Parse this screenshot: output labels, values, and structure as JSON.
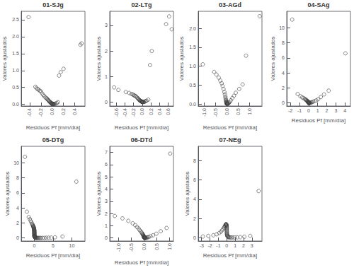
{
  "chart_data": [
    {
      "type": "scatter",
      "title": "01-SJg",
      "xlabel": "Residuos Pf [mm/día]",
      "ylabel": "Valores ajustados",
      "xlim": [
        -0.55,
        0.58
      ],
      "ylim": [
        -0.05,
        2.75
      ],
      "xticks": [
        -0.4,
        -0.2,
        {
          "value": 0.0,
          "label": "0.0"
        },
        0.2,
        0.4
      ],
      "yticks": [
        {
          "value": 0.0,
          "label": "0.0"
        },
        0.5,
        {
          "value": 1.0,
          "label": "1.0"
        },
        1.5,
        {
          "value": 2.0,
          "label": "2.0"
        },
        2.5
      ],
      "x": [
        -0.42,
        -0.3,
        -0.28,
        -0.26,
        -0.24,
        -0.22,
        -0.2,
        -0.18,
        -0.16,
        -0.14,
        -0.12,
        -0.1,
        -0.09,
        -0.08,
        -0.07,
        -0.06,
        -0.05,
        -0.04,
        -0.03,
        -0.03,
        -0.02,
        -0.02,
        -0.01,
        -0.01,
        0.0,
        0.0,
        0.0,
        0.0,
        0.0,
        0.01,
        0.01,
        0.02,
        0.02,
        0.03,
        0.04,
        0.06,
        0.08,
        0.1,
        0.12,
        0.15,
        0.2,
        0.5,
        0.52
      ],
      "values": [
        2.58,
        0.52,
        0.48,
        0.45,
        0.43,
        0.4,
        0.38,
        0.32,
        0.28,
        0.24,
        0.2,
        0.18,
        0.16,
        0.14,
        0.12,
        0.1,
        0.08,
        0.07,
        0.06,
        0.05,
        0.04,
        0.03,
        0.03,
        0.02,
        0.02,
        0.02,
        0.01,
        0.01,
        0.01,
        0.01,
        0.01,
        0.01,
        0.01,
        0.01,
        0.01,
        0.02,
        0.04,
        0.06,
        0.85,
        0.95,
        1.05,
        1.76,
        1.8
      ],
      "color": "#444444",
      "marker": "circle",
      "grid": false
    },
    {
      "type": "scatter",
      "title": "02-LTg",
      "xlabel": "Residuos Pf [mm/día]",
      "ylabel": "Valores ajustados",
      "xlim": [
        -0.75,
        0.72
      ],
      "ylim": [
        -0.15,
        3.55
      ],
      "xticks": [
        -0.6,
        -0.4,
        -0.2,
        {
          "value": 0.0,
          "label": "0.0"
        },
        0.2,
        0.4,
        0.6
      ],
      "yticks": [
        0,
        1,
        2,
        3
      ],
      "x": [
        -0.65,
        -0.55,
        -0.38,
        -0.3,
        -0.25,
        -0.22,
        -0.2,
        -0.18,
        -0.16,
        -0.14,
        -0.12,
        -0.1,
        -0.09,
        -0.08,
        -0.07,
        -0.06,
        -0.05,
        -0.04,
        -0.03,
        -0.02,
        -0.02,
        -0.01,
        0.0,
        0.0,
        0.0,
        0.0,
        0.01,
        0.01,
        0.02,
        0.03,
        0.04,
        0.06,
        0.08,
        0.1,
        0.14,
        0.18,
        0.22,
        0.55,
        0.62,
        0.68
      ],
      "values": [
        0.58,
        0.48,
        0.4,
        0.36,
        0.32,
        0.3,
        0.28,
        0.26,
        0.24,
        0.22,
        0.18,
        0.15,
        0.13,
        0.11,
        0.09,
        0.07,
        0.06,
        0.05,
        0.04,
        0.03,
        0.02,
        0.02,
        0.02,
        0.01,
        0.01,
        0.01,
        0.01,
        0.01,
        0.01,
        0.01,
        0.01,
        0.02,
        0.04,
        0.06,
        0.1,
        1.45,
        2.0,
        3.05,
        3.35,
        2.85
      ],
      "color": "#444444",
      "marker": "circle",
      "grid": false
    },
    {
      "type": "scatter",
      "title": "03-AGd",
      "xlabel": "Residuos Pf [mm/día]",
      "ylabel": "Valores ajustados",
      "xlim": [
        -1.25,
        1.55
      ],
      "ylim": [
        -0.05,
        2.45
      ],
      "xticks": [
        {
          "value": -1.0,
          "label": "-1.0"
        },
        -0.5,
        {
          "value": 0.0,
          "label": "0.0"
        },
        0.5,
        {
          "value": 1.0,
          "label": "1.0"
        }
      ],
      "yticks": [
        {
          "value": 0.0,
          "label": "0.0"
        },
        0.5,
        {
          "value": 1.0,
          "label": "1.0"
        },
        1.5,
        {
          "value": 2.0,
          "label": "2.0"
        }
      ],
      "x": [
        -1.05,
        -0.55,
        -0.45,
        -0.35,
        -0.28,
        -0.22,
        -0.18,
        -0.14,
        -0.1,
        -0.08,
        -0.06,
        -0.05,
        -0.04,
        -0.03,
        -0.02,
        -0.02,
        -0.01,
        0.0,
        0.0,
        0.0,
        0.0,
        0.0,
        0.01,
        0.01,
        0.02,
        0.03,
        0.04,
        0.06,
        0.08,
        0.1,
        0.14,
        0.18,
        0.25,
        0.32,
        0.4,
        0.55,
        0.7,
        0.85,
        1.45
      ],
      "values": [
        1.05,
        0.85,
        0.78,
        0.7,
        0.62,
        0.55,
        0.48,
        0.4,
        0.32,
        0.26,
        0.2,
        0.16,
        0.13,
        0.1,
        0.08,
        0.06,
        0.05,
        0.04,
        0.03,
        0.03,
        0.02,
        0.01,
        0.01,
        0.01,
        0.01,
        0.01,
        0.01,
        0.01,
        0.02,
        0.04,
        0.06,
        0.1,
        0.16,
        0.22,
        0.3,
        0.4,
        0.52,
        1.28,
        2.32
      ],
      "color": "#444444",
      "marker": "circle",
      "grid": false
    },
    {
      "type": "scatter",
      "title": "04-SAg",
      "xlabel": "Residuos Pf [mm/día]",
      "ylabel": "Valores ajustados",
      "xlim": [
        -2.4,
        4.6
      ],
      "ylim": [
        -0.4,
        12.2
      ],
      "xticks": [
        -2,
        -1,
        0,
        1,
        2,
        3,
        4
      ],
      "yticks": [
        0,
        2,
        4,
        6,
        8,
        10
      ],
      "x": [
        -1.8,
        -1.2,
        -0.9,
        -0.7,
        -0.55,
        -0.42,
        -0.35,
        -0.28,
        -0.22,
        -0.18,
        -0.14,
        -0.1,
        -0.08,
        -0.06,
        -0.04,
        -0.03,
        -0.02,
        -0.01,
        0.0,
        0.0,
        0.0,
        0.0,
        0.0,
        0.01,
        0.01,
        0.02,
        0.03,
        0.04,
        0.06,
        0.08,
        0.1,
        0.14,
        0.18,
        0.25,
        0.35,
        0.48,
        0.65,
        0.85,
        1.05,
        1.35,
        1.7,
        2.2,
        4.05
      ],
      "values": [
        11.1,
        1.2,
        0.9,
        0.75,
        0.65,
        0.55,
        0.48,
        0.42,
        0.36,
        0.3,
        0.26,
        0.22,
        0.18,
        0.15,
        0.12,
        0.1,
        0.08,
        0.06,
        0.05,
        0.04,
        0.03,
        0.02,
        0.01,
        0.01,
        0.01,
        0.01,
        0.01,
        0.01,
        0.01,
        0.01,
        0.01,
        0.02,
        0.03,
        0.06,
        0.1,
        0.16,
        0.25,
        0.35,
        0.5,
        0.8,
        1.15,
        1.65,
        6.6
      ],
      "color": "#444444",
      "marker": "circle",
      "grid": false
    },
    {
      "type": "scatter",
      "title": "05-DTg",
      "xlabel": "Residuos Pf [mm/día]",
      "ylabel": "Valores ajustados",
      "xlim": [
        -3.5,
        13.5
      ],
      "ylim": [
        -0.4,
        12.2
      ],
      "xticks": [
        0,
        5,
        10
      ],
      "yticks": [
        0,
        2,
        4,
        6,
        8,
        10
      ],
      "x": [
        -2.5,
        -2.0,
        -1.5,
        -1.2,
        -1.0,
        -0.8,
        -0.6,
        -0.5,
        -0.4,
        -0.35,
        -0.3,
        -0.25,
        -0.2,
        -0.18,
        -0.15,
        -0.12,
        -0.1,
        -0.08,
        -0.06,
        -0.04,
        -0.03,
        -0.02,
        -0.02,
        -0.01,
        -0.01,
        0.0,
        0.0,
        0.0,
        0.0,
        0.0,
        0.0,
        0.0,
        0.01,
        0.01,
        0.01,
        0.02,
        0.02,
        0.03,
        0.04,
        0.05,
        0.06,
        0.08,
        0.1,
        0.12,
        0.15,
        0.2,
        0.25,
        0.3,
        0.4,
        0.5,
        0.65,
        0.8,
        1.0,
        1.2,
        1.5,
        1.8,
        2.2,
        2.7,
        3.2,
        3.8,
        4.5,
        5.5,
        7.5,
        11.2
      ],
      "values": [
        10.8,
        3.5,
        2.8,
        2.5,
        2.3,
        2.1,
        1.9,
        1.8,
        1.7,
        1.6,
        1.55,
        1.5,
        1.45,
        1.4,
        1.35,
        1.3,
        1.25,
        1.2,
        1.15,
        1.1,
        1.05,
        1.0,
        0.95,
        0.9,
        0.85,
        0.8,
        0.75,
        0.7,
        0.65,
        0.6,
        0.55,
        0.5,
        0.45,
        0.4,
        0.35,
        0.3,
        0.28,
        0.25,
        0.22,
        0.2,
        0.18,
        0.15,
        0.12,
        0.1,
        0.08,
        0.06,
        0.05,
        0.04,
        0.03,
        0.02,
        0.02,
        0.01,
        0.01,
        0.01,
        0.01,
        0.01,
        0.02,
        0.02,
        0.03,
        0.04,
        0.06,
        0.1,
        0.2,
        7.5
      ],
      "color": "#444444",
      "marker": "circle",
      "grid": false
    },
    {
      "type": "scatter",
      "title": "06-DTd",
      "xlabel": "Residuos Pf [mm/día]",
      "ylabel": "Valores ajustados",
      "xlim": [
        -1.35,
        1.15
      ],
      "ylim": [
        -0.25,
        7.5
      ],
      "xticks": [
        {
          "value": -1.0,
          "label": "-1.0"
        },
        -0.5,
        {
          "value": 0.0,
          "label": "0.0"
        },
        0.5,
        {
          "value": 1.0,
          "label": "1.0"
        }
      ],
      "yticks": [
        0,
        1,
        2,
        3,
        4,
        5,
        6,
        7
      ],
      "x": [
        -1.15,
        -0.85,
        -0.62,
        -0.45,
        -0.35,
        -0.28,
        -0.22,
        -0.18,
        -0.14,
        -0.1,
        -0.08,
        -0.06,
        -0.05,
        -0.04,
        -0.03,
        -0.02,
        -0.02,
        -0.01,
        -0.01,
        0.0,
        0.0,
        0.0,
        0.0,
        0.0,
        0.01,
        0.01,
        0.01,
        0.02,
        0.02,
        0.03,
        0.04,
        0.05,
        0.06,
        0.08,
        0.1,
        0.14,
        0.18,
        0.25,
        0.35,
        0.48,
        0.65,
        0.88,
        1.02
      ],
      "values": [
        1.8,
        1.6,
        1.4,
        1.2,
        1.05,
        0.9,
        0.78,
        0.65,
        0.55,
        0.45,
        0.38,
        0.32,
        0.28,
        0.24,
        0.2,
        0.17,
        0.14,
        0.12,
        0.1,
        0.08,
        0.07,
        0.05,
        0.04,
        0.03,
        0.02,
        0.02,
        0.02,
        0.02,
        0.01,
        0.01,
        0.01,
        0.01,
        0.01,
        0.02,
        0.03,
        0.05,
        0.08,
        0.14,
        0.22,
        0.35,
        0.55,
        0.82,
        6.9
      ],
      "color": "#444444",
      "marker": "circle",
      "grid": false
    },
    {
      "type": "scatter",
      "title": "07-NEg",
      "xlabel": "Residuos Pf [mm/día]",
      "ylabel": "Valores ajustados",
      "xlim": [
        -3.4,
        4.2
      ],
      "ylim": [
        -0.35,
        9.5
      ],
      "xticks": [
        -3,
        -2,
        -1,
        0,
        1,
        2,
        3
      ],
      "yticks": [
        0,
        2,
        4,
        6,
        8
      ],
      "x": [
        -2.85,
        -2.2,
        -1.6,
        -1.2,
        -0.9,
        -0.7,
        -0.55,
        -0.42,
        -0.32,
        -0.25,
        -0.2,
        -0.16,
        -0.12,
        -0.1,
        -0.08,
        -0.06,
        -0.04,
        -0.03,
        -0.02,
        -0.01,
        0.0,
        0.0,
        0.0,
        0.0,
        0.0,
        0.01,
        0.01,
        0.02,
        0.03,
        0.04,
        0.06,
        0.08,
        0.12,
        0.16,
        0.22,
        0.3,
        0.4,
        0.55,
        0.72,
        0.95,
        1.25,
        1.62,
        2.1,
        2.8,
        3.8
      ],
      "values": [
        0.12,
        0.18,
        0.25,
        0.35,
        0.48,
        0.62,
        0.78,
        0.92,
        1.05,
        1.15,
        1.22,
        1.3,
        1.35,
        1.38,
        1.4,
        1.38,
        1.35,
        1.3,
        1.25,
        1.18,
        1.1,
        1.02,
        0.92,
        0.82,
        0.72,
        0.62,
        0.52,
        0.42,
        0.35,
        0.28,
        0.22,
        0.16,
        0.12,
        0.08,
        0.05,
        0.04,
        0.03,
        0.02,
        0.02,
        0.02,
        0.03,
        0.05,
        0.1,
        0.18,
        4.85
      ],
      "color": "#444444",
      "marker": "circle",
      "grid": false
    }
  ]
}
